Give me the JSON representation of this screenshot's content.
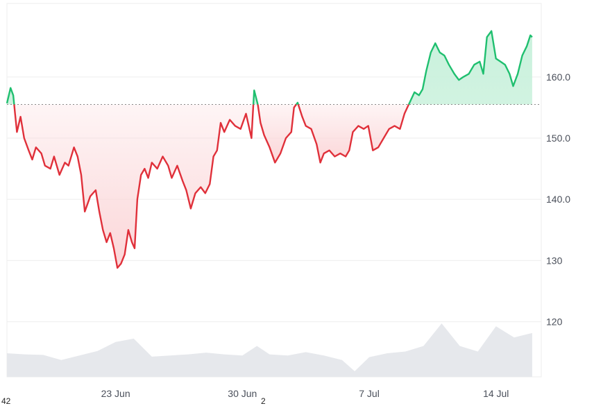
{
  "chart_data": {
    "type": "area",
    "baseline": 155.5,
    "colors": {
      "up_line": "#1fbf6f",
      "up_fill": "#c9f1dc",
      "down_line": "#e0303a",
      "down_fill": "#fbd6d8",
      "volume": "#e6e8ec",
      "grid": "#eeeeee",
      "baseline_dots": "#888888"
    },
    "y_ticks": [
      {
        "value": 160,
        "label": "160.0"
      },
      {
        "value": 150,
        "label": "150.0"
      },
      {
        "value": 140,
        "label": "140.0"
      },
      {
        "value": 130,
        "label": "130"
      },
      {
        "value": 120,
        "label": "120"
      }
    ],
    "ylim": [
      111,
      172
    ],
    "x_ticks": [
      {
        "day": 6,
        "label": "23 Jun"
      },
      {
        "day": 13,
        "label": "30 Jun"
      },
      {
        "day": 20,
        "label": "7 Jul"
      },
      {
        "day": 27,
        "label": "14 Jul"
      }
    ],
    "xlim": [
      0,
      29.5
    ],
    "series": [
      {
        "values": [
          [
            0.0,
            155.7
          ],
          [
            0.2,
            158.2
          ],
          [
            0.35,
            157.0
          ],
          [
            0.45,
            154.0
          ],
          [
            0.55,
            151.0
          ],
          [
            0.75,
            153.5
          ],
          [
            0.95,
            150.0
          ],
          [
            1.2,
            148.0
          ],
          [
            1.4,
            146.5
          ],
          [
            1.6,
            148.5
          ],
          [
            1.9,
            147.5
          ],
          [
            2.1,
            145.5
          ],
          [
            2.4,
            145.0
          ],
          [
            2.6,
            147.0
          ],
          [
            2.9,
            144.0
          ],
          [
            3.2,
            146.0
          ],
          [
            3.4,
            145.5
          ],
          [
            3.7,
            148.5
          ],
          [
            3.9,
            147.0
          ],
          [
            4.1,
            144.0
          ],
          [
            4.3,
            138.0
          ],
          [
            4.6,
            140.5
          ],
          [
            4.9,
            141.5
          ],
          [
            5.1,
            138.0
          ],
          [
            5.3,
            135.0
          ],
          [
            5.5,
            133.0
          ],
          [
            5.7,
            134.5
          ],
          [
            5.9,
            132.0
          ],
          [
            6.1,
            128.8
          ],
          [
            6.3,
            129.5
          ],
          [
            6.5,
            131.0
          ],
          [
            6.7,
            135.0
          ],
          [
            6.9,
            133.0
          ],
          [
            7.05,
            132.0
          ],
          [
            7.2,
            140.0
          ],
          [
            7.4,
            144.0
          ],
          [
            7.6,
            145.0
          ],
          [
            7.8,
            143.5
          ],
          [
            8.0,
            146.0
          ],
          [
            8.3,
            145.0
          ],
          [
            8.6,
            147.0
          ],
          [
            8.9,
            145.5
          ],
          [
            9.1,
            143.5
          ],
          [
            9.4,
            145.5
          ],
          [
            9.7,
            143.0
          ],
          [
            9.9,
            141.5
          ],
          [
            10.15,
            138.5
          ],
          [
            10.4,
            141.0
          ],
          [
            10.7,
            142.0
          ],
          [
            10.95,
            141.0
          ],
          [
            11.2,
            142.5
          ],
          [
            11.4,
            147.0
          ],
          [
            11.6,
            148.0
          ],
          [
            11.8,
            152.5
          ],
          [
            12.0,
            151.0
          ],
          [
            12.3,
            153.0
          ],
          [
            12.6,
            152.0
          ],
          [
            12.9,
            151.5
          ],
          [
            13.2,
            154.0
          ],
          [
            13.5,
            150.0
          ],
          [
            13.65,
            157.8
          ],
          [
            13.85,
            155.5
          ],
          [
            14.0,
            152.5
          ],
          [
            14.2,
            150.5
          ],
          [
            14.5,
            148.5
          ],
          [
            14.8,
            146.0
          ],
          [
            15.1,
            147.5
          ],
          [
            15.4,
            150.0
          ],
          [
            15.7,
            151.0
          ],
          [
            15.85,
            155.0
          ],
          [
            16.05,
            155.8
          ],
          [
            16.3,
            153.5
          ],
          [
            16.5,
            152.0
          ],
          [
            16.8,
            151.5
          ],
          [
            17.1,
            149.0
          ],
          [
            17.3,
            146.0
          ],
          [
            17.5,
            147.5
          ],
          [
            17.8,
            148.0
          ],
          [
            18.1,
            147.0
          ],
          [
            18.4,
            147.5
          ],
          [
            18.7,
            147.0
          ],
          [
            18.9,
            148.0
          ],
          [
            19.1,
            151.0
          ],
          [
            19.4,
            152.0
          ],
          [
            19.7,
            151.5
          ],
          [
            19.95,
            152.0
          ],
          [
            20.2,
            148.0
          ],
          [
            20.5,
            148.5
          ],
          [
            20.8,
            150.0
          ],
          [
            21.1,
            151.5
          ],
          [
            21.4,
            152.0
          ],
          [
            21.7,
            151.5
          ],
          [
            21.95,
            154.0
          ],
          [
            22.2,
            155.6
          ],
          [
            22.5,
            157.5
          ],
          [
            22.75,
            157.0
          ],
          [
            22.95,
            158.0
          ],
          [
            23.15,
            161.0
          ],
          [
            23.4,
            164.0
          ],
          [
            23.65,
            165.5
          ],
          [
            23.9,
            164.0
          ],
          [
            24.15,
            163.5
          ],
          [
            24.4,
            162.0
          ],
          [
            24.7,
            160.5
          ],
          [
            24.95,
            159.5
          ],
          [
            25.2,
            160.0
          ],
          [
            25.5,
            160.5
          ],
          [
            25.8,
            162.0
          ],
          [
            26.1,
            162.5
          ],
          [
            26.3,
            160.5
          ],
          [
            26.5,
            166.5
          ],
          [
            26.75,
            167.5
          ],
          [
            27.0,
            163.0
          ],
          [
            27.25,
            162.5
          ],
          [
            27.5,
            162.0
          ],
          [
            27.75,
            160.5
          ],
          [
            27.95,
            158.5
          ],
          [
            28.2,
            160.5
          ],
          [
            28.45,
            163.5
          ],
          [
            28.7,
            165.0
          ],
          [
            28.9,
            166.8
          ],
          [
            29.0,
            166.5
          ]
        ]
      }
    ],
    "volume": [
      [
        0.0,
        0.42
      ],
      [
        1.0,
        0.4
      ],
      [
        2.0,
        0.39
      ],
      [
        3.0,
        0.3
      ],
      [
        4.0,
        0.38
      ],
      [
        5.0,
        0.46
      ],
      [
        6.0,
        0.62
      ],
      [
        7.0,
        0.68
      ],
      [
        8.0,
        0.36
      ],
      [
        9.0,
        0.38
      ],
      [
        10.0,
        0.4
      ],
      [
        11.0,
        0.43
      ],
      [
        12.0,
        0.4
      ],
      [
        13.0,
        0.38
      ],
      [
        13.8,
        0.55
      ],
      [
        14.5,
        0.4
      ],
      [
        15.5,
        0.38
      ],
      [
        16.5,
        0.44
      ],
      [
        17.5,
        0.38
      ],
      [
        18.5,
        0.3
      ],
      [
        19.2,
        0.1
      ],
      [
        20.0,
        0.35
      ],
      [
        21.0,
        0.42
      ],
      [
        22.0,
        0.45
      ],
      [
        23.0,
        0.55
      ],
      [
        24.0,
        0.95
      ],
      [
        25.0,
        0.55
      ],
      [
        26.0,
        0.45
      ],
      [
        27.0,
        0.9
      ],
      [
        28.0,
        0.7
      ],
      [
        29.0,
        0.78
      ]
    ],
    "x_edge_fragments": [
      "42",
      "2"
    ]
  }
}
